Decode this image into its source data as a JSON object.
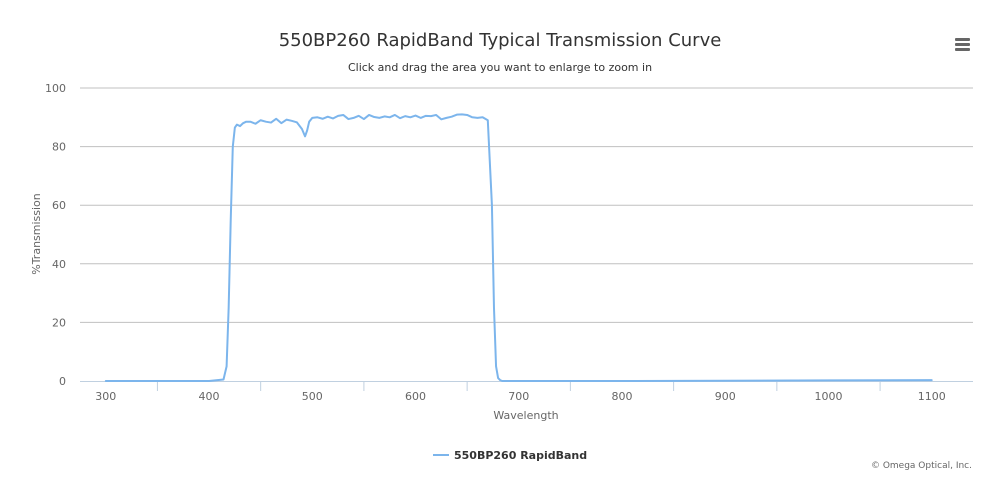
{
  "title": "550BP260 RapidBand Typical Transmission Curve",
  "subtitle": "Click and drag the area you want to enlarge to zoom in",
  "credits": "© Omega Optical, Inc.",
  "menu": {
    "icon": "hamburger-menu-icon"
  },
  "colors": {
    "series": "#7cb5ec",
    "grid": "#c0c0c0",
    "axis": "#c0d0e0",
    "text": "#333333"
  },
  "chart_data": {
    "type": "line",
    "xlabel": "Wavelength",
    "ylabel": "%Transmission",
    "xlim": [
      275,
      1140
    ],
    "ylim": [
      0,
      100
    ],
    "xticks": [
      300,
      400,
      500,
      600,
      700,
      800,
      900,
      1000,
      1100
    ],
    "yticks": [
      0,
      20,
      40,
      60,
      80,
      100
    ],
    "grid": true,
    "legend_position": "bottom-center",
    "series": [
      {
        "name": "550BP260 RapidBand",
        "color": "#7cb5ec",
        "x": [
          300,
          350,
          400,
          414,
          417,
          419,
          421,
          423,
          425,
          427,
          430,
          433,
          436,
          440,
          445,
          450,
          455,
          460,
          465,
          470,
          475,
          480,
          485,
          490,
          493,
          495,
          497,
          500,
          505,
          510,
          515,
          520,
          525,
          530,
          535,
          540,
          545,
          550,
          555,
          560,
          565,
          570,
          575,
          580,
          585,
          590,
          595,
          600,
          605,
          610,
          615,
          620,
          625,
          630,
          635,
          640,
          645,
          650,
          655,
          660,
          665,
          670,
          674,
          676,
          678,
          680,
          682,
          684,
          686,
          690,
          700,
          750,
          800,
          900,
          1000,
          1100
        ],
        "y": [
          0,
          0,
          0,
          0.5,
          5,
          25,
          55,
          80,
          86.5,
          87.5,
          87,
          88,
          88.5,
          88.5,
          87.8,
          89,
          88.5,
          88.2,
          89.5,
          88,
          89.2,
          88.8,
          88.3,
          86,
          83.5,
          85.5,
          88.5,
          89.8,
          90,
          89.5,
          90.2,
          89.6,
          90.5,
          90.8,
          89.4,
          89.8,
          90.5,
          89.4,
          90.8,
          90.1,
          89.8,
          90.3,
          90,
          90.8,
          89.7,
          90.4,
          90,
          90.6,
          89.8,
          90.5,
          90.4,
          90.8,
          89.3,
          89.8,
          90.2,
          90.9,
          91,
          90.8,
          90,
          89.8,
          90,
          89,
          60,
          25,
          5,
          1,
          0.3,
          0,
          0,
          0,
          0,
          0,
          0,
          0.1,
          0.2,
          0.3
        ]
      }
    ]
  }
}
